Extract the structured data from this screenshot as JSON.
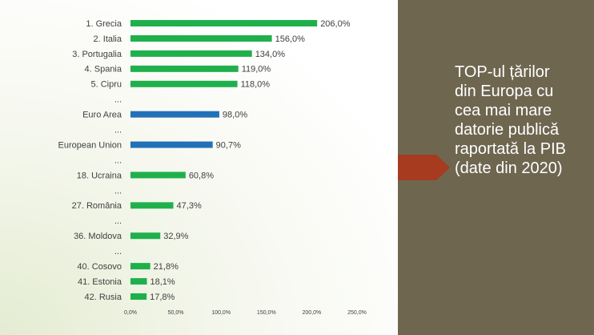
{
  "chart_data": {
    "type": "bar",
    "orientation": "horizontal",
    "categories": [
      "1. Grecia",
      "2. Italia",
      "3. Portugalia",
      "4. Spania",
      "5. Cipru",
      "...",
      "Euro Area",
      "...",
      "European Union",
      "...",
      "18. Ucraina",
      "...",
      "27. România",
      "...",
      "36. Moldova",
      "...",
      "40. Cosovo",
      "41. Estonia",
      "42. Rusia"
    ],
    "values": [
      206,
      156,
      134,
      119,
      118,
      null,
      98,
      null,
      90.7,
      null,
      60.8,
      null,
      47.3,
      null,
      32.9,
      null,
      21.8,
      18.1,
      17.8
    ],
    "value_labels": [
      "206,0%",
      "156,0%",
      "134,0%",
      "119,0%",
      "118,0%",
      null,
      "98,0%",
      null,
      "90,7%",
      null,
      "60,8%",
      null,
      "47,3%",
      null,
      "32,9%",
      null,
      "21,8%",
      "18,1%",
      "17,8%"
    ],
    "colors": [
      "#1fb04c",
      "#1fb04c",
      "#1fb04c",
      "#1fb04c",
      "#1fb04c",
      null,
      "#2270b8",
      null,
      "#2270b8",
      null,
      "#1fb04c",
      null,
      "#1fb04c",
      null,
      "#1fb04c",
      null,
      "#1fb04c",
      "#1fb04c",
      "#1fb04c"
    ],
    "xlim": [
      0,
      250
    ],
    "xticks": [
      {
        "value": 0,
        "label": "0,0%"
      },
      {
        "value": 50,
        "label": "50,0%"
      },
      {
        "value": 100,
        "label": "100,0%"
      },
      {
        "value": 150,
        "label": "150,0%"
      },
      {
        "value": 200,
        "label": "200,0%"
      },
      {
        "value": 250,
        "label": "250,0%"
      }
    ],
    "grid": false
  },
  "side_text": "TOP-ul țărilor din Europa cu cea mai mare datorie publică raportată la PIB (date din 2020)"
}
